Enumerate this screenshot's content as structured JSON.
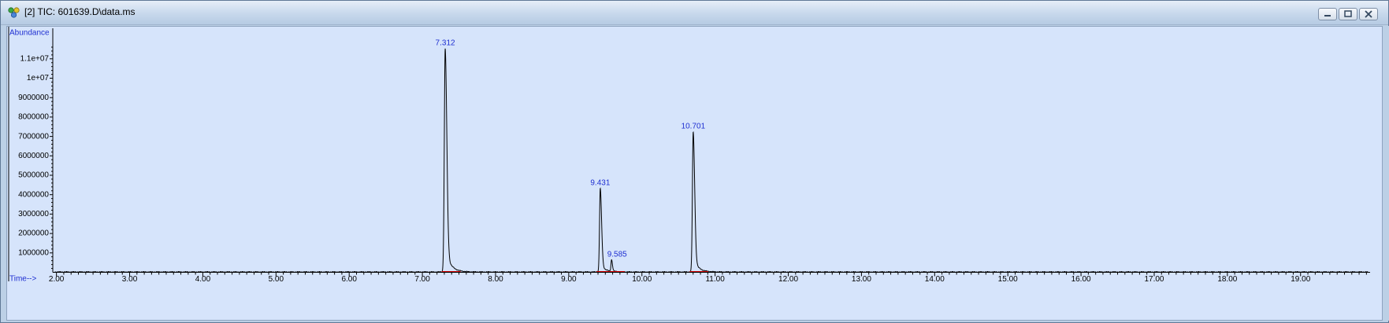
{
  "window": {
    "title": "[2] TIC: 601639.D\\data.ms",
    "controls": [
      "minimize",
      "restore",
      "close"
    ]
  },
  "colors": {
    "plot_background": "#d6e4fb",
    "trace": "#000000",
    "label_blue": "#1f2fd1",
    "baseline_red": "#d00000"
  },
  "chart_data": {
    "type": "line",
    "title": "[2] TIC: 601639.D\\data.ms",
    "ylabel": "Abundance",
    "xlabel": "Time-->",
    "xlim": [
      1.95,
      19.95
    ],
    "ylim": [
      0,
      11600000
    ],
    "x_ticks": [
      2,
      3,
      4,
      5,
      6,
      7,
      8,
      9,
      10,
      11,
      12,
      13,
      14,
      15,
      16,
      17,
      18,
      19
    ],
    "x_tick_labels": [
      "2.00",
      "3.00",
      "4.00",
      "5.00",
      "6.00",
      "7.00",
      "8.00",
      "9.00",
      "10.00",
      "11.00",
      "12.00",
      "13.00",
      "14.00",
      "15.00",
      "16.00",
      "17.00",
      "18.00",
      "19.00"
    ],
    "y_ticks": [
      1000000,
      2000000,
      3000000,
      4000000,
      5000000,
      6000000,
      7000000,
      8000000,
      9000000,
      10000000,
      11000000
    ],
    "y_tick_labels": [
      "1000000",
      "2000000",
      "3000000",
      "4000000",
      "5000000",
      "6000000",
      "7000000",
      "8000000",
      "9000000",
      "1e+07",
      "1.1e+07"
    ],
    "peaks": [
      {
        "label": "7.312",
        "rt": 7.312,
        "apex": 11500000,
        "width_left": 0.012,
        "width_right": 0.022,
        "tail": 0.07
      },
      {
        "label": "9.431",
        "rt": 9.431,
        "apex": 4300000,
        "width_left": 0.01,
        "width_right": 0.018,
        "tail": 0.06
      },
      {
        "label": "9.585",
        "rt": 9.585,
        "apex": 600000,
        "width_left": 0.008,
        "width_right": 0.012,
        "tail": 0.04
      },
      {
        "label": "10.701",
        "rt": 10.701,
        "apex": 7200000,
        "width_left": 0.011,
        "width_right": 0.02,
        "tail": 0.065
      }
    ],
    "noise_level": 40000
  }
}
